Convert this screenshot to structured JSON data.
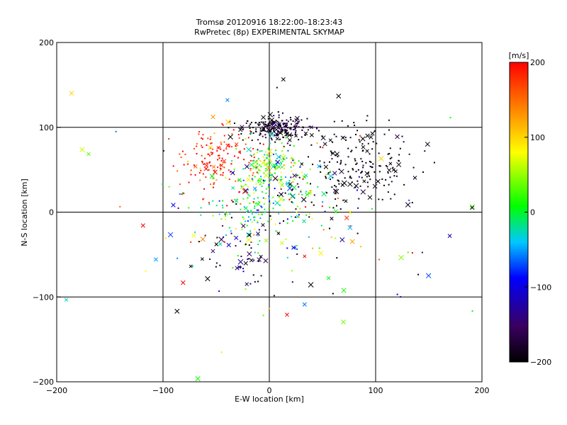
{
  "chart_data": {
    "type": "scatter",
    "title": "Tromsø 20120916 18:22:00–18:23:43",
    "subtitle": "RwPretec (8p) EXPERIMENTAL SKYMAP",
    "xlabel": "E-W location [km]",
    "ylabel": "N-S location [km]",
    "xlim": [
      -200,
      200
    ],
    "ylim": [
      -200,
      200
    ],
    "xticks": [
      -200,
      -100,
      0,
      100,
      200
    ],
    "yticks": [
      -200,
      -100,
      0,
      100,
      200
    ],
    "grid": true,
    "colorbar": {
      "label": "[m/s]",
      "min": -200,
      "max": 200,
      "ticks": [
        200,
        100,
        0,
        -100,
        -200
      ],
      "colors": [
        "#000000",
        "#3a0060",
        "#0000ff",
        "#00c8ff",
        "#00ff00",
        "#ffff00",
        "#ff8000",
        "#ff0000"
      ]
    },
    "clusters": [
      {
        "cx": 5,
        "cy": 98,
        "sx": 15,
        "sy": 7,
        "n": 230,
        "vmu": -185,
        "vsd": 25,
        "cross": 0.12
      },
      {
        "cx": 85,
        "cy": 55,
        "sx": 25,
        "sy": 22,
        "n": 200,
        "vmu": -195,
        "vsd": 15,
        "cross": 0.15
      },
      {
        "cx": -50,
        "cy": 60,
        "sx": 20,
        "sy": 20,
        "n": 150,
        "vmu": 185,
        "vsd": 25,
        "cross": 0.08
      },
      {
        "cx": 0,
        "cy": 55,
        "sx": 14,
        "sy": 14,
        "n": 140,
        "vmu": 20,
        "vsd": 50,
        "cross": 0.15
      },
      {
        "cx": -15,
        "cy": 0,
        "sx": 22,
        "sy": 18,
        "n": 140,
        "vmu": 0,
        "vsd": 50,
        "cross": 0.08
      },
      {
        "cx": 20,
        "cy": 30,
        "sx": 18,
        "sy": 18,
        "n": 60,
        "vmu": -60,
        "vsd": 120,
        "cross": 0.15
      },
      {
        "cx": -30,
        "cy": -50,
        "sx": 15,
        "sy": 20,
        "n": 50,
        "vmu": -170,
        "vsd": 40,
        "cross": 0.35
      },
      {
        "cx": 30,
        "cy": -20,
        "sx": 40,
        "sy": 40,
        "n": 60,
        "vmu": 0,
        "vsd": 160,
        "cross": 0.2
      },
      {
        "cx": 0,
        "cy": 20,
        "sx": 110,
        "sy": 80,
        "n": 110,
        "vmu": 0,
        "vsd": 170,
        "cross": 0.45
      }
    ]
  }
}
